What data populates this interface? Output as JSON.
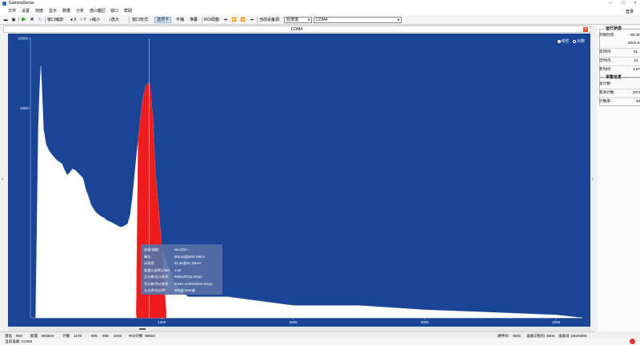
{
  "window": {
    "title": "GammaSense"
  },
  "menu": {
    "items": [
      "文件",
      "设置",
      "刻度",
      "显示",
      "数据",
      "分析",
      "感兴趣区",
      "窗口",
      "帮助"
    ],
    "login": "登录"
  },
  "toolbar": {
    "window_zoom": "窗口缩放:",
    "axis_x": "X",
    "axis_y": "Y",
    "zoom_out": "缩小",
    "zoom_in": "放大",
    "window_mode": "窗口形式:",
    "mode_select": "选项卡",
    "mode_tile": "平铺",
    "mode_cascade": "堆叠",
    "roi_adjust": "ROI调整:",
    "current_device_label": "当前设备源:",
    "device_source": "轻谱谱",
    "port": "COM4"
  },
  "plot": {
    "title": "COM4",
    "legend_linear": "线性",
    "legend_log": "对数",
    "y_ticks": [
      "10000",
      "1000"
    ],
    "x_ticks": [
      "1000",
      "2000",
      "3000",
      "4000"
    ],
    "info": [
      {
        "label": "核素/道能:",
        "value": "Ba-133/---"
      },
      {
        "label": "峰位:",
        "value": "905.00道/903.78keV"
      },
      {
        "label": "半高宽:",
        "value": "61.25道/61.25keV"
      },
      {
        "label": "能量分辨率(1/60):",
        "value": "1.92"
      },
      {
        "label": "总计数/总计数率:",
        "value": "98804/9723.48cps"
      },
      {
        "label": "净计数/净计数率:",
        "value": "92651.5.65%/9263.52cps"
      },
      {
        "label": "左边界/右边界:",
        "value": "805道/1036道"
      }
    ]
  },
  "status": {
    "channel_label": "道址",
    "channel": "903",
    "energy_label": "能量",
    "energy": "903keV",
    "counts_label": "计数",
    "counts": "1270",
    "roi_vals": [
      "805",
      "906",
      "1004"
    ],
    "roi_counts_label": "ROI计数",
    "roi_counts": "98804",
    "hw_label": "硬件码",
    "hw": "0001",
    "dev_id_label": "设备识别码",
    "dev_id": "0604",
    "dev_no_label": "设备号",
    "dev_no": "19020065",
    "current_device_label": "当前设备:",
    "current_device": "COM4"
  },
  "side_panel": {
    "run_status_title": "运行状态",
    "start_time_label": "开始时间:",
    "start_time_val": "08:39",
    "date_val": "2024-04",
    "real_time_label": "实时间:",
    "real_time_val": "61.",
    "live_time_label": "活时间:",
    "live_time_val": "13.",
    "dead_time_label": "死时间:",
    "dead_time_val": "4.07",
    "acq_title": "采集信息",
    "total_counts_label": "总计数:",
    "valid_counts_label": "有效计数:",
    "valid_counts_val": "2676",
    "count_rate_label": "计数率:",
    "count_rate_val": "43"
  },
  "chart_data": {
    "type": "area",
    "y_scale": "log",
    "ylim": [
      1,
      10000
    ],
    "xlim": [
      0,
      4200
    ],
    "legend": "top-right",
    "series": [
      {
        "x": [
          40,
          60,
          70,
          80,
          90,
          100,
          110,
          120,
          140,
          160,
          180,
          200,
          220,
          240,
          260,
          280,
          300,
          320,
          340,
          360,
          380,
          400,
          420,
          440,
          460,
          480,
          500,
          520,
          540,
          560,
          580,
          600,
          620,
          640,
          660,
          680,
          700,
          720,
          740,
          760,
          780,
          800,
          820,
          840,
          860,
          880,
          900,
          903,
          910,
          930,
          950,
          1000,
          1100,
          1200,
          1500,
          2000,
          2500,
          3000,
          3500,
          4000,
          4200
        ],
        "y": [
          1,
          500,
          1800,
          4000,
          1400,
          500,
          380,
          300,
          250,
          220,
          200,
          180,
          170,
          160,
          130,
          110,
          120,
          135,
          130,
          120,
          110,
          100,
          70,
          55,
          42,
          36,
          32,
          30,
          28,
          27,
          25,
          24,
          23,
          22,
          21,
          20,
          20,
          21,
          22,
          30,
          60,
          150,
          350,
          800,
          1500,
          2100,
          2300,
          2350,
          2000,
          800,
          120,
          10,
          3,
          2,
          2,
          1.5,
          1.5,
          1.3,
          1.2,
          1.1,
          1
        ]
      }
    ],
    "roi": {
      "left": 805,
      "right": 1036,
      "peak": 903
    },
    "cursor_x": 903
  }
}
